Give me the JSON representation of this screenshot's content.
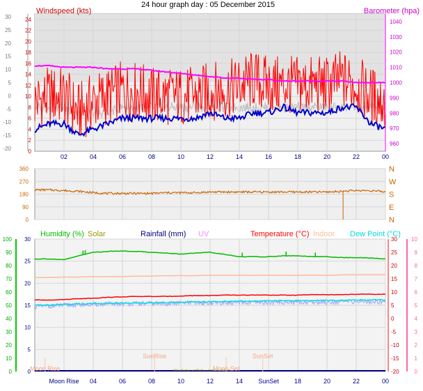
{
  "page_title": "24 hour graph day : 05 December 2015",
  "colors": {
    "wind": "#ff0000",
    "gust": "#0000cc",
    "barometer": "#ff00ff",
    "direction": "#cc6600",
    "humidity": "#00bb00",
    "temperature": "#ff0000",
    "indoor": "#ffbb99",
    "dewpoint": "#00dddd",
    "feelslike": "#aaaaff",
    "grey_series": "#bbbbbb",
    "solar": "#999900",
    "rainfall": "#000080",
    "uv": "#ff88ff"
  },
  "chart_data": [
    {
      "type": "line",
      "panel": "wind-barometer",
      "title": "Windspeed (kts)",
      "right_title": "Barometer (hpa)",
      "x_ticks": [
        "02",
        "04",
        "06",
        "08",
        "10",
        "12",
        "14",
        "16",
        "18",
        "20",
        "22",
        "00"
      ],
      "y_left_outer_ticks": [
        "30",
        "25",
        "20",
        "15",
        "10",
        "5",
        "0",
        "-5",
        "-10",
        "-15",
        "-20"
      ],
      "y_left_ticks": [
        "24",
        "22",
        "20",
        "18",
        "16",
        "14",
        "12",
        "10",
        "8",
        "6",
        "4",
        "2",
        "0"
      ],
      "y_right_ticks": [
        "1040",
        "1030",
        "1020",
        "1010",
        "1000",
        "990",
        "980",
        "970",
        "960"
      ],
      "ylim_left": [
        0,
        25
      ],
      "ylim_right": [
        955,
        1045
      ],
      "hours": [
        0,
        1,
        2,
        3,
        4,
        5,
        6,
        7,
        8,
        9,
        10,
        11,
        12,
        13,
        14,
        15,
        16,
        17,
        18,
        19,
        20,
        21,
        22,
        23,
        24
      ],
      "series": [
        {
          "key": "wind",
          "values": [
            9,
            10,
            10,
            7,
            9,
            10,
            11,
            11,
            10,
            10,
            10,
            10,
            11,
            11,
            12,
            13,
            12,
            12,
            12,
            12,
            12,
            13,
            12,
            10,
            9
          ]
        },
        {
          "key": "gust",
          "values": [
            4,
            5,
            5,
            3,
            4,
            5,
            6,
            6,
            6,
            6,
            6,
            6,
            7,
            6,
            6,
            7,
            7,
            8,
            7,
            7,
            7,
            8,
            8,
            5,
            4
          ]
        },
        {
          "key": "barometer",
          "values": [
            1011,
            1011,
            1010,
            1010,
            1010,
            1009,
            1009,
            1009,
            1008,
            1007,
            1006,
            1005,
            1004,
            1003,
            1003,
            1002,
            1002,
            1001,
            1001,
            1001,
            1001,
            1001,
            1000,
            1000,
            1000
          ]
        },
        {
          "key": "grey_series",
          "values": [
            8,
            8,
            8,
            7,
            7,
            7,
            8,
            8,
            8,
            8,
            8,
            8,
            8,
            8,
            8,
            8,
            8,
            8,
            8,
            8,
            8,
            8,
            8,
            8,
            8
          ]
        }
      ]
    },
    {
      "type": "line",
      "panel": "wind-direction",
      "y_ticks": [
        "360",
        "270",
        "180",
        "90",
        "0"
      ],
      "compass": [
        "N",
        "W",
        "S",
        "E",
        "N"
      ],
      "ylim": [
        0,
        360
      ],
      "hours": [
        0,
        1,
        2,
        3,
        4,
        5,
        6,
        7,
        8,
        9,
        10,
        11,
        12,
        13,
        14,
        15,
        16,
        17,
        18,
        19,
        20,
        21,
        22,
        23,
        24
      ],
      "series": [
        {
          "key": "direction",
          "values": [
            210,
            210,
            205,
            200,
            190,
            185,
            185,
            185,
            185,
            190,
            190,
            190,
            195,
            195,
            195,
            195,
            195,
            195,
            195,
            195,
            195,
            200,
            205,
            205,
            195
          ]
        }
      ]
    },
    {
      "type": "line",
      "panel": "temperature-humidity",
      "legend": [
        "Humidity (%)",
        "Solar",
        "Rainfall (mm)",
        "UV",
        "Temperature (°C)",
        "Indoor",
        "Dew Point (°C)"
      ],
      "y_left_outer_ticks": [
        "100",
        "90",
        "80",
        "70",
        "60",
        "50",
        "40",
        "30",
        "20",
        "10",
        "0"
      ],
      "y_left_ticks": [
        "30",
        "25",
        "20",
        "15",
        "10",
        "5",
        "0"
      ],
      "y_right_ticks": [
        "30",
        "25",
        "20",
        "15",
        "10",
        "5",
        "0",
        "-5",
        "-10",
        "-15",
        "-20"
      ],
      "y_right_outer_ticks": [
        "10",
        "9",
        "8",
        "7",
        "6",
        "5",
        "4",
        "3",
        "2",
        "1",
        "0"
      ],
      "ylim_left": [
        0,
        30
      ],
      "hours": [
        0,
        1,
        2,
        3,
        4,
        5,
        6,
        7,
        8,
        9,
        10,
        11,
        12,
        13,
        14,
        15,
        16,
        17,
        18,
        19,
        20,
        21,
        22,
        23,
        24
      ],
      "series": [
        {
          "key": "humidity",
          "values": [
            25.5,
            25.5,
            25.3,
            26.2,
            27.0,
            27.2,
            27.3,
            27.2,
            27.0,
            26.8,
            26.6,
            26.8,
            27.0,
            26.5,
            26.0,
            26.0,
            26.0,
            26.2,
            26.2,
            26.0,
            26.0,
            25.8,
            25.8,
            25.7,
            25.5
          ]
        },
        {
          "key": "indoor",
          "values": [
            21.3,
            21.3,
            21.4,
            21.4,
            21.5,
            21.5,
            21.5,
            21.6,
            21.6,
            21.7,
            21.7,
            21.7,
            21.8,
            21.8,
            21.8,
            21.8,
            21.8,
            21.8,
            21.8,
            21.8,
            21.8,
            21.9,
            21.9,
            21.9,
            21.9
          ]
        },
        {
          "key": "temperature",
          "values": [
            16.2,
            16.2,
            16.3,
            16.5,
            16.6,
            16.8,
            16.9,
            17.0,
            17.0,
            17.0,
            17.1,
            17.2,
            17.2,
            17.3,
            17.3,
            17.3,
            17.3,
            17.3,
            17.3,
            17.4,
            17.4,
            17.4,
            17.5,
            17.5,
            17.5
          ]
        },
        {
          "key": "dewpoint",
          "values": [
            15.0,
            15.1,
            15.2,
            15.3,
            15.4,
            15.4,
            15.5,
            15.5,
            15.6,
            15.6,
            15.7,
            15.8,
            15.8,
            15.8,
            15.9,
            15.9,
            16.0,
            16.0,
            16.0,
            16.1,
            16.1,
            16.1,
            16.2,
            16.2,
            16.2
          ]
        },
        {
          "key": "feelslike",
          "values": [
            14.7,
            14.8,
            15.0,
            15.1,
            15.2,
            15.3,
            15.3,
            15.4,
            15.4,
            15.4,
            15.5,
            15.5,
            15.5,
            15.6,
            15.6,
            15.6,
            15.6,
            15.7,
            15.7,
            15.7,
            15.7,
            15.8,
            15.8,
            15.8,
            15.8
          ]
        }
      ],
      "annotations": [
        {
          "label": "Moon Rise",
          "hour": 0.7
        },
        {
          "label": "SunRise",
          "hour": 8.2
        },
        {
          "label": "Moon Set",
          "hour": 13.1
        },
        {
          "label": "SunSet",
          "hour": 15.6
        }
      ],
      "x_ticks_bottom": [
        "Moon Rise",
        "04",
        "06",
        "08",
        "10",
        "12",
        "14",
        "SunSet",
        "18",
        "20",
        "22",
        "00"
      ]
    }
  ]
}
